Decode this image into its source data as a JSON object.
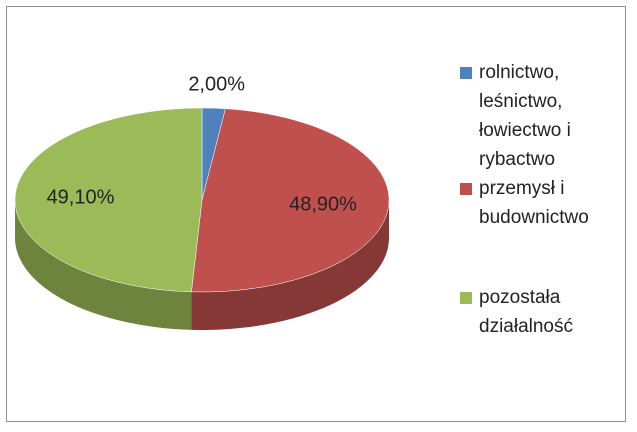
{
  "chart_data": {
    "type": "pie",
    "categories": [
      "rolnictwo, leśnictwo, łowiectwo i rybactwo",
      "przemysł i budownictwo",
      "pozostała działalność"
    ],
    "values": [
      2,
      48.9,
      49.1
    ],
    "value_labels": [
      "2,00%",
      "48,90%",
      "49,10%"
    ],
    "colors": [
      "#4f81bd",
      "#c0504d",
      "#9bbb59"
    ],
    "legend": "right"
  }
}
